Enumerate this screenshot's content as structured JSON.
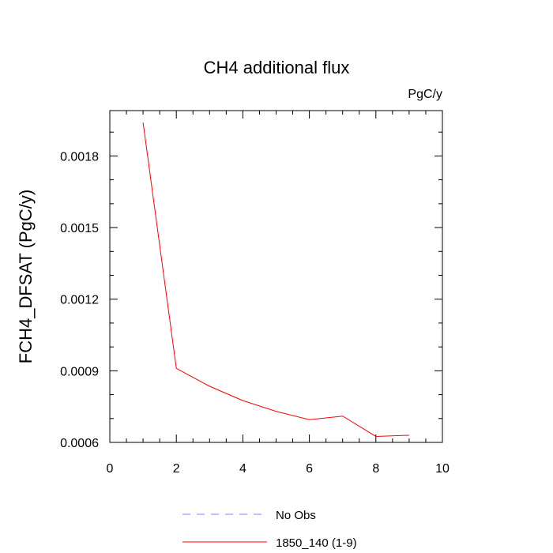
{
  "chart_data": {
    "type": "line",
    "title": "CH4 additional flux",
    "units": "PgC/y",
    "ylabel": "FCH4_DFSAT  (PgC/y)",
    "xlabel": "",
    "xlim": [
      0,
      10
    ],
    "ylim": [
      0.0006,
      0.00199
    ],
    "x_ticks": [
      "0",
      "2",
      "4",
      "6",
      "8",
      "10"
    ],
    "y_ticks": [
      "0.0006",
      "0.0009",
      "0.0012",
      "0.0015",
      "0.0018"
    ],
    "grid": false,
    "legend_position": "bottom",
    "series": [
      {
        "name": "No Obs",
        "color": "#8080ff",
        "dash": "dashed",
        "x": [],
        "y": []
      },
      {
        "name": "1850_140 (1-9)",
        "color": "#ff0000",
        "dash": "solid",
        "x": [
          1,
          2,
          3,
          4,
          5,
          6,
          7,
          8,
          9
        ],
        "y": [
          0.00194,
          0.00091,
          0.000835,
          0.000775,
          0.00073,
          0.000695,
          0.00071,
          0.000625,
          0.00063
        ]
      }
    ]
  }
}
